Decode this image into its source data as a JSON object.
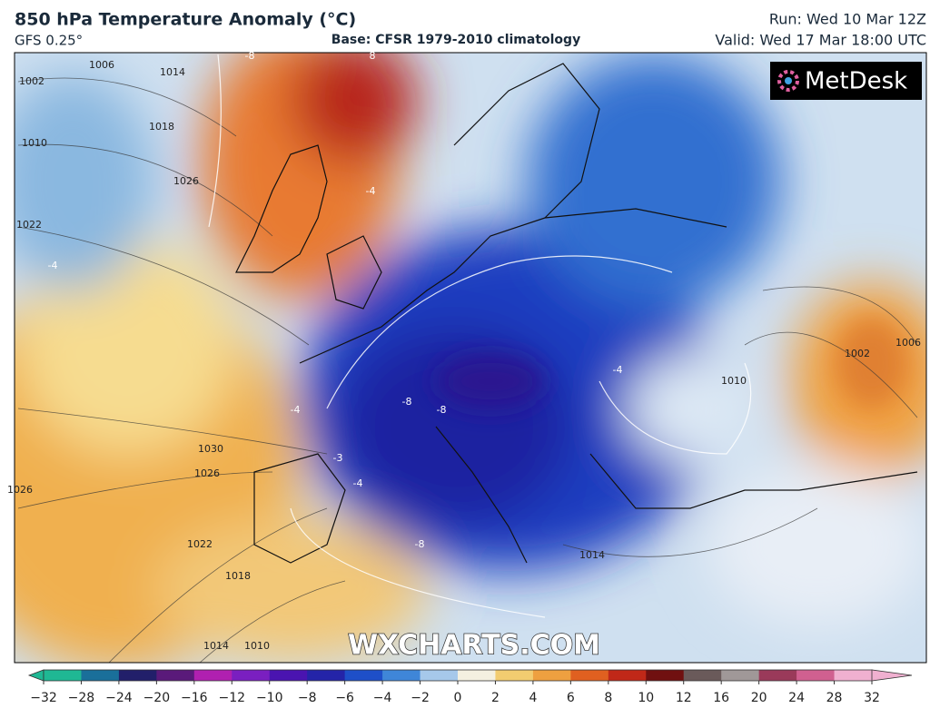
{
  "header": {
    "title": "850 hPa Temperature Anomaly (°C)",
    "model": "GFS 0.25°",
    "base": "Base: CFSR 1979-2010 climatology",
    "run": "Run: Wed 10 Mar 12Z",
    "valid": "Valid: Wed 17 Mar 18:00 UTC"
  },
  "logo": "MetDesk",
  "watermark": "WXCHARTS.COM",
  "map_labels": [
    "1002",
    "1006",
    "1014",
    "1010",
    "1018",
    "1026",
    "1022",
    "1030",
    "1026",
    "1022",
    "1018",
    "1014",
    "1010",
    "1026",
    "1006",
    "1002",
    "1010",
    "1014",
    "-8",
    "8",
    "-4",
    "-4",
    "-4",
    "-8",
    "-8",
    "-3",
    "-4",
    "-8",
    "-4"
  ],
  "colorbar": {
    "ticks": [
      {
        "value": -32,
        "label": "−32"
      },
      {
        "value": -28,
        "label": "−28"
      },
      {
        "value": -24,
        "label": "−24"
      },
      {
        "value": -20,
        "label": "−20"
      },
      {
        "value": -16,
        "label": "−16"
      },
      {
        "value": -12,
        "label": "−12"
      },
      {
        "value": -10,
        "label": "−10"
      },
      {
        "value": -8,
        "label": "−8"
      },
      {
        "value": -6,
        "label": "−6"
      },
      {
        "value": -4,
        "label": "−4"
      },
      {
        "value": -2,
        "label": "−2"
      },
      0,
      2,
      4,
      6,
      8,
      10,
      12,
      16,
      20,
      24,
      28,
      32
    ],
    "colors": [
      "#1fb894",
      "#1a6f9a",
      "#221f6a",
      "#5a1a7a",
      "#b020b0",
      "#7a1fc0",
      "#4a14b0",
      "#2424a8",
      "#1e4fc8",
      "#3f86d8",
      "#a6c8ea",
      "#f4f0e0",
      "#f2cc70",
      "#eea040",
      "#e06020",
      "#c02818",
      "#701010",
      "#6a5a5a",
      "#a09898",
      "#9a3a5a",
      "#d06090",
      "#f0b0d0"
    ]
  }
}
